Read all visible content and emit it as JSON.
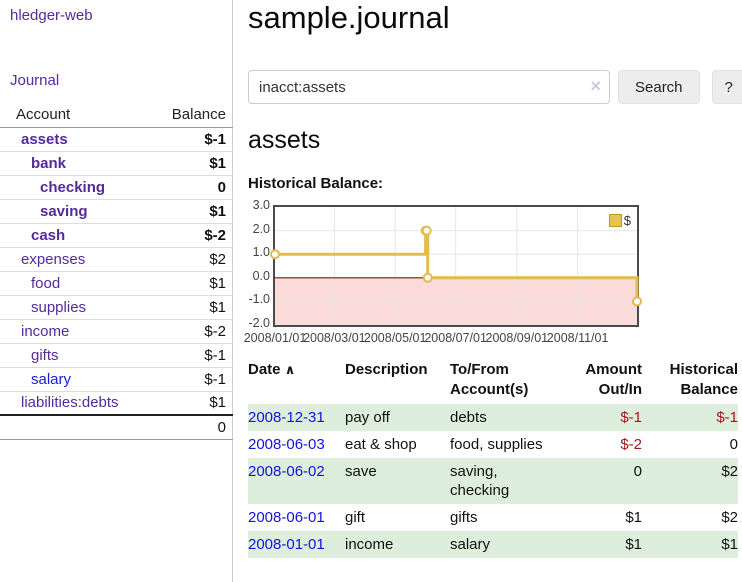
{
  "sidebar": {
    "brand": "hledger-web",
    "journal_link": "Journal",
    "accounts_table": {
      "col_account": "Account",
      "col_balance": "Balance",
      "rows": [
        {
          "name": "assets",
          "balance": "$-1"
        },
        {
          "name": "bank",
          "balance": "$1"
        },
        {
          "name": "checking",
          "balance": "0"
        },
        {
          "name": "saving",
          "balance": "$1"
        },
        {
          "name": "cash",
          "balance": "$-2"
        },
        {
          "name": "expenses",
          "balance": "$2"
        },
        {
          "name": "food",
          "balance": "$1"
        },
        {
          "name": "supplies",
          "balance": "$1"
        },
        {
          "name": "income",
          "balance": "$-2"
        },
        {
          "name": "gifts",
          "balance": "$-1"
        },
        {
          "name": "salary",
          "balance": "$-1"
        },
        {
          "name": "liabilities:debts",
          "balance": "$1"
        }
      ],
      "total": "0"
    }
  },
  "main": {
    "title": "sample.journal",
    "search": {
      "value": "inacct:assets",
      "clear_icon": "×",
      "search_button": "Search",
      "help_button": "?"
    },
    "account_heading": "assets",
    "chart_heading": "Historical Balance:"
  },
  "chart_data": {
    "type": "line",
    "title": "Historical Balance",
    "style": "step",
    "legend": [
      {
        "label": "$",
        "color": "#e8c44f"
      }
    ],
    "ylim": [
      -2,
      3
    ],
    "yticks": [
      {
        "value": 3,
        "label": "3.0"
      },
      {
        "value": 2,
        "label": "2.0"
      },
      {
        "value": 1,
        "label": "1.0"
      },
      {
        "value": 0,
        "label": "0.0"
      },
      {
        "value": -1,
        "label": "-1.0"
      },
      {
        "value": -2,
        "label": "-2.0"
      }
    ],
    "xticks": [
      {
        "f": 0.0,
        "label": "2008/01/01"
      },
      {
        "f": 0.164,
        "label": "2008/03/01"
      },
      {
        "f": 0.332,
        "label": "2008/05/01"
      },
      {
        "f": 0.499,
        "label": "2008/07/01"
      },
      {
        "f": 0.668,
        "label": "2008/09/01"
      },
      {
        "f": 0.836,
        "label": "2008/11/01"
      }
    ],
    "series": [
      {
        "name": "$",
        "color": "#e3bb4e",
        "points": [
          {
            "date": "2008-01-01",
            "f": 0.0,
            "y": 1
          },
          {
            "date": "2008-06-01",
            "f": 0.416,
            "y": 2
          },
          {
            "date": "2008-06-02",
            "f": 0.419,
            "y": 2
          },
          {
            "date": "2008-06-03",
            "f": 0.422,
            "y": 0
          },
          {
            "date": "2008-12-31",
            "f": 1.0,
            "y": -1
          }
        ]
      }
    ],
    "grid_color": "#e6e6e6",
    "zero_line_color": "#7c1313",
    "below_zero_fill": "#fbdada"
  },
  "register": {
    "headers": {
      "date": "Date",
      "description": "Description",
      "accounts": "To/From Account(s)",
      "amount": "Amount Out/In",
      "balance": "Historical Balance"
    },
    "sort_icon": "∧",
    "rows": [
      {
        "date": "2008-12-31",
        "description": "pay off",
        "accounts": "debts",
        "amount": "$-1",
        "balance": "$-1"
      },
      {
        "date": "2008-06-03",
        "description": "eat & shop",
        "accounts": "food, supplies",
        "amount": "$-2",
        "balance": "0"
      },
      {
        "date": "2008-06-02",
        "description": "save",
        "accounts": "saving, checking",
        "amount": "0",
        "balance": "$2"
      },
      {
        "date": "2008-06-01",
        "description": "gift",
        "accounts": "gifts",
        "amount": "$1",
        "balance": "$2"
      },
      {
        "date": "2008-01-01",
        "description": "income",
        "accounts": "salary",
        "amount": "$1",
        "balance": "$1"
      }
    ]
  }
}
